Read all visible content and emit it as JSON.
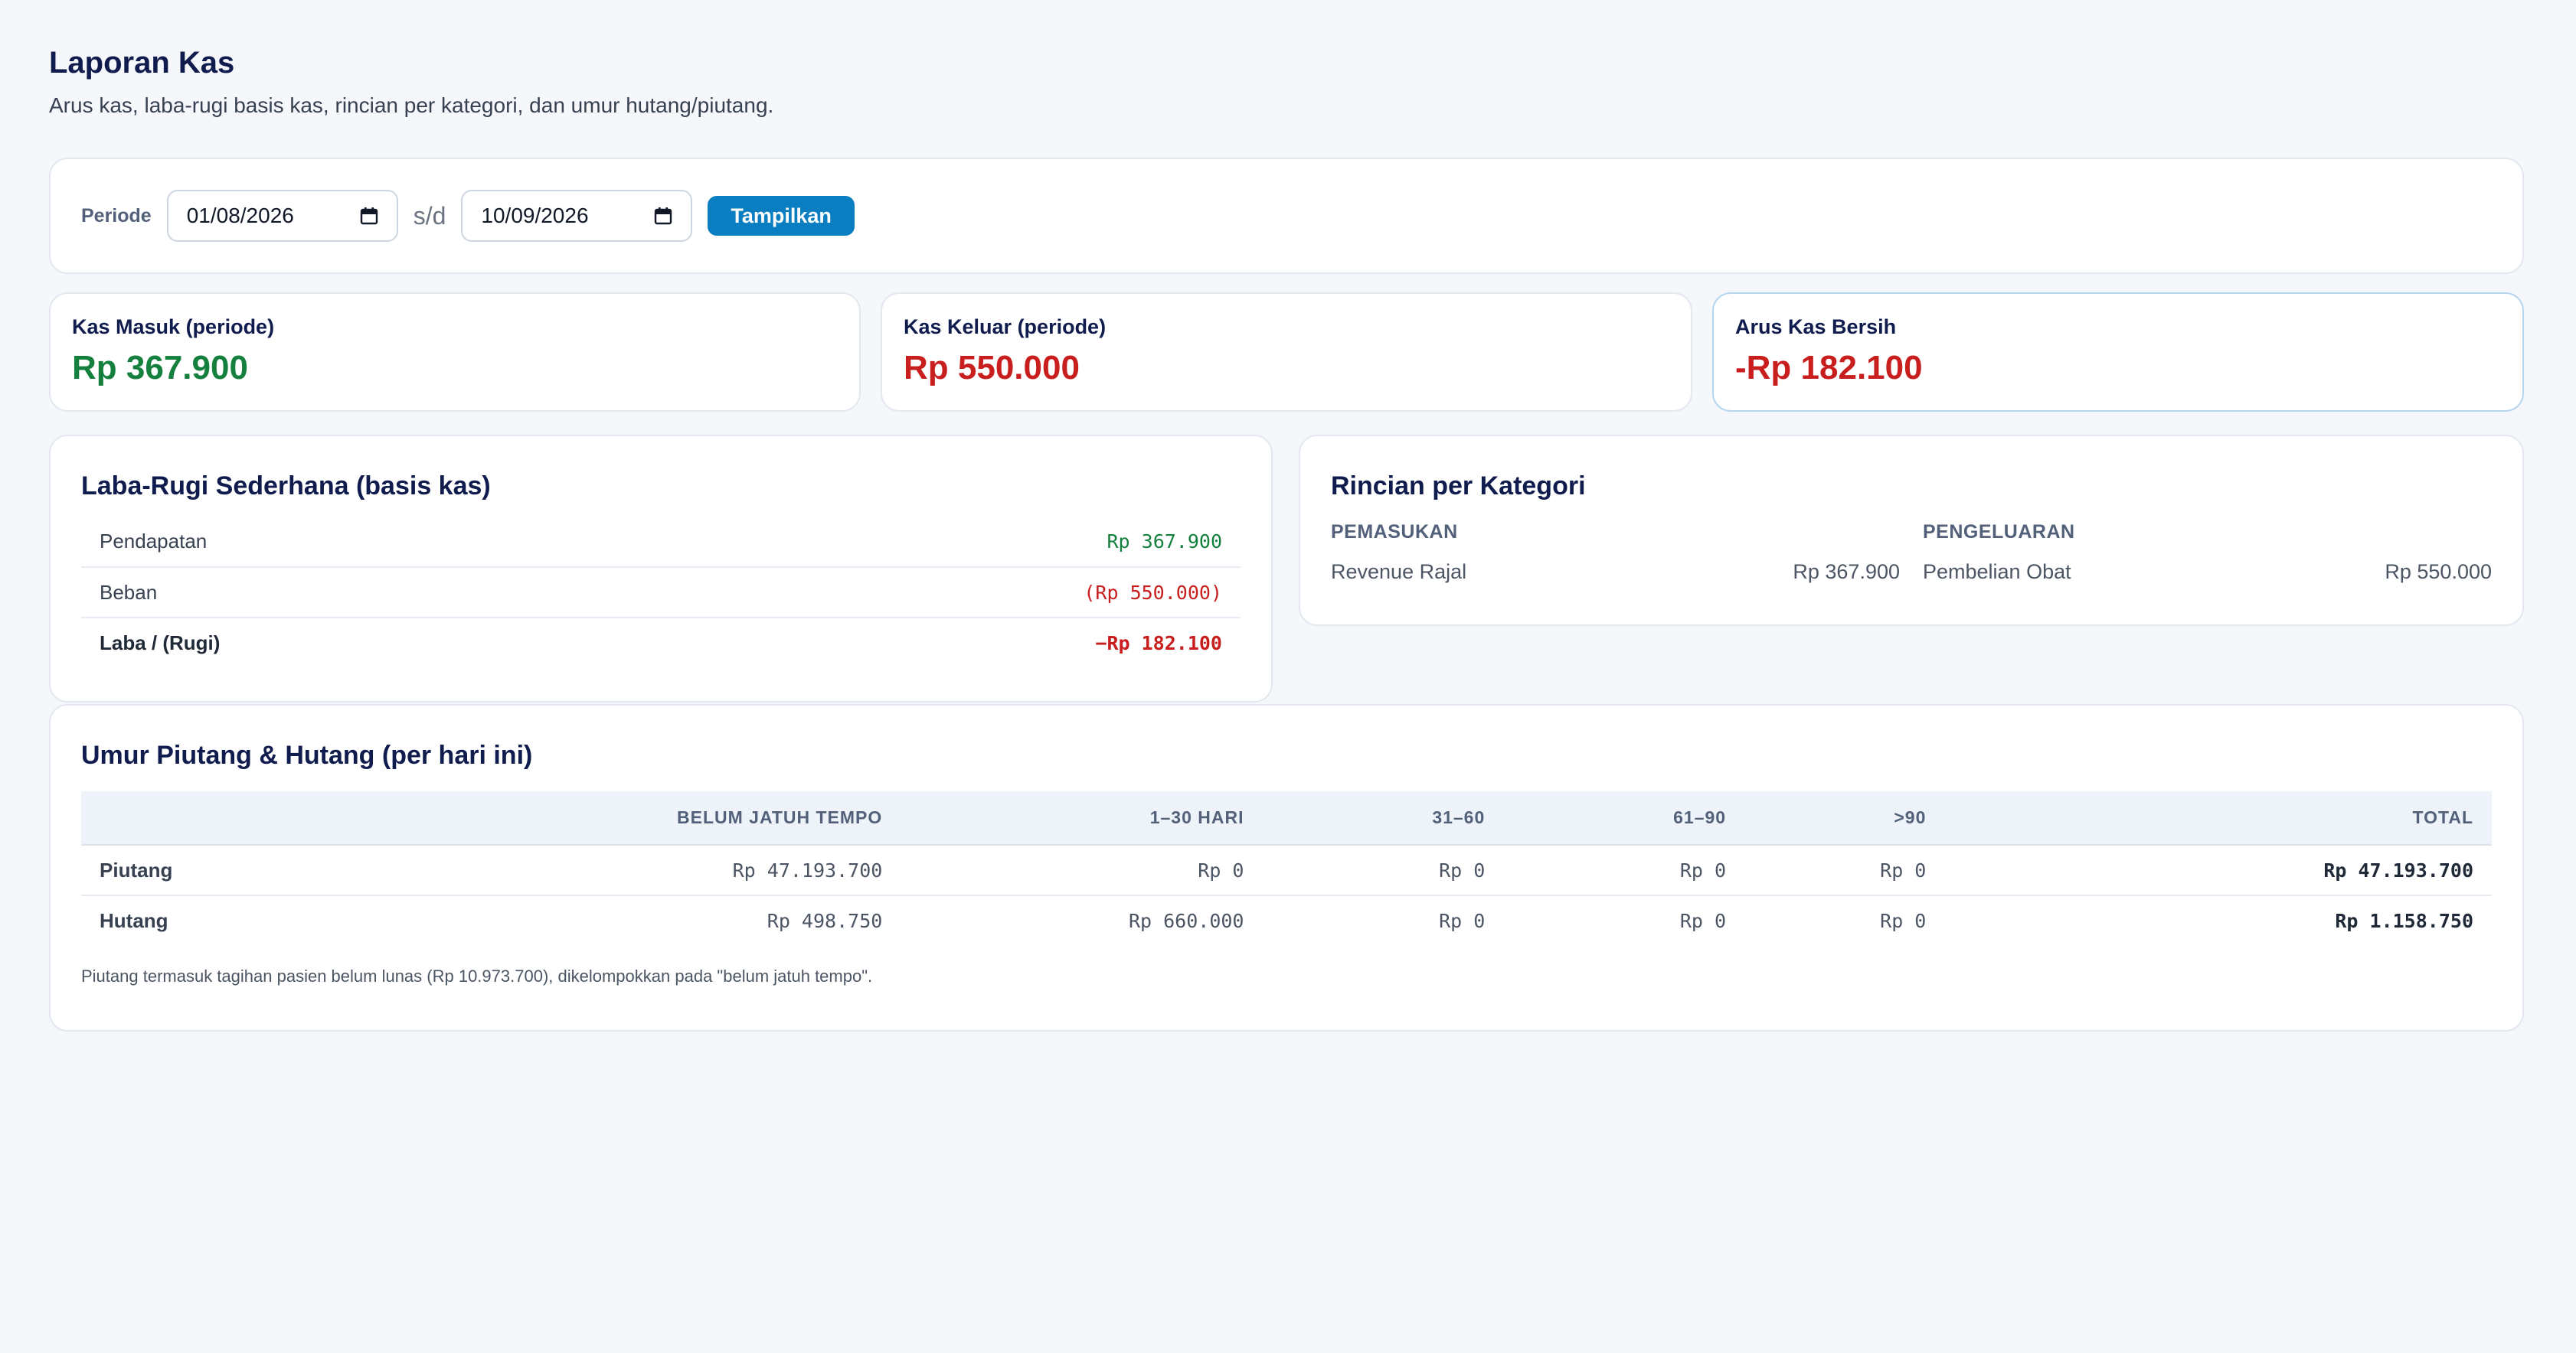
{
  "header": {
    "title": "Laporan Kas",
    "subtitle": "Arus kas, laba-rugi basis kas, rincian per kategori, dan umur hutang/piutang."
  },
  "filter": {
    "label": "Periode",
    "start_date": "01/08/2026",
    "separator": "s/d",
    "end_date": "10/09/2026",
    "submit_label": "Tampilkan"
  },
  "stats": [
    {
      "label": "Kas Masuk (periode)",
      "value": "Rp 367.900"
    },
    {
      "label": "Kas Keluar (periode)",
      "value": "Rp 550.000"
    },
    {
      "label": "Arus Kas Bersih",
      "value": "-Rp 182.100"
    }
  ],
  "laba_rugi": {
    "title": "Laba-Rugi Sederhana (basis kas)",
    "rows": [
      {
        "label": "Pendapatan",
        "value": "Rp 367.900"
      },
      {
        "label": "Beban",
        "value": "(Rp 550.000)"
      },
      {
        "label": "Laba / (Rugi)",
        "value": "−Rp 182.100"
      }
    ]
  },
  "rincian": {
    "title": "Rincian per Kategori",
    "pemasukan": {
      "heading": "PEMASUKAN",
      "items": [
        {
          "label": "Revenue Rajal",
          "value": "Rp 367.900"
        }
      ]
    },
    "pengeluaran": {
      "heading": "PENGELUARAN",
      "items": [
        {
          "label": "Pembelian Obat",
          "value": "Rp 550.000"
        }
      ]
    }
  },
  "aging": {
    "title": "Umur Piutang & Hutang (per hari ini)",
    "columns": [
      "",
      "BELUM JATUH TEMPO",
      "1–30 HARI",
      "31–60",
      "61–90",
      ">90",
      "TOTAL"
    ],
    "rows": [
      {
        "label": "Piutang",
        "cells": [
          "Rp 47.193.700",
          "Rp 0",
          "Rp 0",
          "Rp 0",
          "Rp 0",
          "Rp 47.193.700"
        ]
      },
      {
        "label": "Hutang",
        "cells": [
          "Rp 498.750",
          "Rp 660.000",
          "Rp 0",
          "Rp 0",
          "Rp 0",
          "Rp 1.158.750"
        ]
      }
    ],
    "note": "Piutang termasuk tagihan pasien belum lunas (Rp 10.973.700), dikelompokkan pada \"belum jatuh tempo\"."
  },
  "colors": {
    "positive": "#15803d",
    "negative": "#c81e1e",
    "accent": "#0b7ec2",
    "title": "#0f1c4d"
  },
  "icons": {
    "date_picker": "calendar-icon"
  }
}
